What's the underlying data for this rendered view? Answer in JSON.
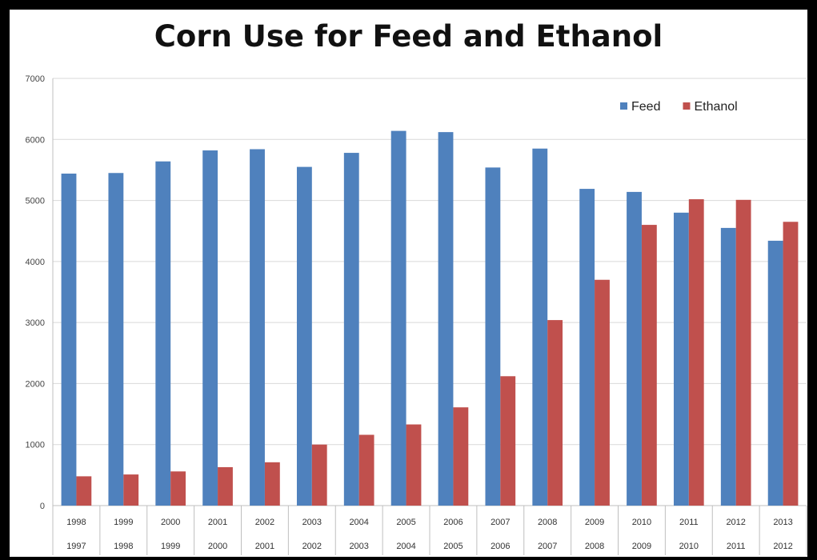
{
  "chart_data": {
    "type": "bar",
    "title": "Corn Use for Feed and Ethanol",
    "categories": [
      [
        "1998",
        "1997"
      ],
      [
        "1999",
        "1998"
      ],
      [
        "2000",
        "1999"
      ],
      [
        "2001",
        "2000"
      ],
      [
        "2002",
        "2001"
      ],
      [
        "2003",
        "2002"
      ],
      [
        "2004",
        "2003"
      ],
      [
        "2005",
        "2004"
      ],
      [
        "2006",
        "2005"
      ],
      [
        "2007",
        "2006"
      ],
      [
        "2008",
        "2007"
      ],
      [
        "2009",
        "2008"
      ],
      [
        "2010",
        "2009"
      ],
      [
        "2011",
        "2010"
      ],
      [
        "2012",
        "2011"
      ],
      [
        "2013",
        "2012"
      ]
    ],
    "series": [
      {
        "name": "Feed",
        "color": "#4F81BD",
        "values": [
          5440,
          5450,
          5640,
          5820,
          5840,
          5550,
          5780,
          6140,
          6120,
          5540,
          5850,
          5190,
          5140,
          4800,
          4550,
          4340
        ]
      },
      {
        "name": "Ethanol",
        "color": "#C0504D",
        "values": [
          480,
          510,
          560,
          630,
          710,
          1000,
          1160,
          1330,
          1610,
          2120,
          3040,
          3700,
          4600,
          5020,
          5010,
          4650
        ]
      }
    ],
    "xlabel": "",
    "ylabel": "",
    "ylim": [
      0,
      7000
    ],
    "yticks": [
      0,
      1000,
      2000,
      3000,
      4000,
      5000,
      6000,
      7000
    ],
    "grid": true,
    "legend_position": "top-right"
  }
}
